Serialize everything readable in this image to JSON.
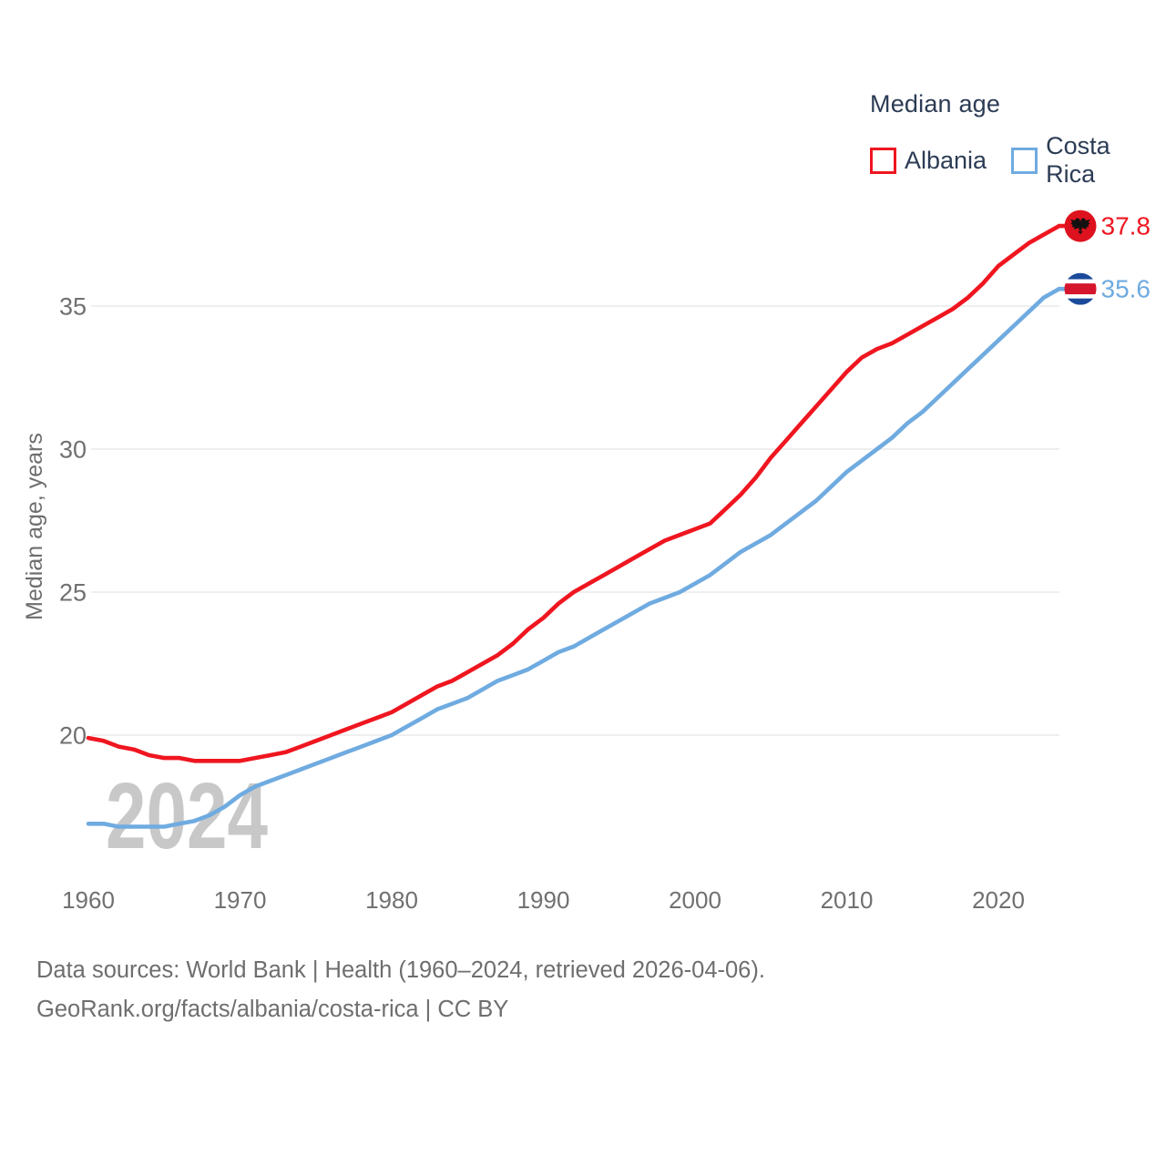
{
  "legend": {
    "title": "Median age",
    "items": [
      {
        "label": "Albania"
      },
      {
        "label": "Costa Rica"
      }
    ]
  },
  "watermark": "2024",
  "footer": {
    "line1": "Data sources: World Bank | Health (1960–2024, retrieved 2026-04-06).",
    "line2": "GeoRank.org/facts/albania/costa-rica | CC BY"
  },
  "chart_data": {
    "type": "line",
    "title": "Median age",
    "xlabel": "",
    "ylabel": "Median age, years",
    "xlim": [
      1956,
      2029
    ],
    "ylim": [
      16.5,
      38.5
    ],
    "xticks": [
      1960,
      1970,
      1980,
      1990,
      2000,
      2010,
      2020
    ],
    "yticks": [
      20,
      25,
      30,
      35
    ],
    "grid": "horizontal",
    "legend_position": "top-right",
    "x_start": 1960,
    "x_end": 2024,
    "x": [
      1960,
      1961,
      1962,
      1963,
      1964,
      1965,
      1966,
      1967,
      1968,
      1969,
      1970,
      1971,
      1972,
      1973,
      1974,
      1975,
      1976,
      1977,
      1978,
      1979,
      1980,
      1981,
      1982,
      1983,
      1984,
      1985,
      1986,
      1987,
      1988,
      1989,
      1990,
      1991,
      1992,
      1993,
      1994,
      1995,
      1996,
      1997,
      1998,
      1999,
      2000,
      2001,
      2002,
      2003,
      2004,
      2005,
      2006,
      2007,
      2008,
      2009,
      2010,
      2011,
      2012,
      2013,
      2014,
      2015,
      2016,
      2017,
      2018,
      2019,
      2020,
      2021,
      2022,
      2023,
      2024
    ],
    "series": [
      {
        "name": "Albania",
        "color": "#ef1620",
        "flag_icon": "albania-flag-icon",
        "end_label": "37.8",
        "last_value": 37.8,
        "values": [
          19.9,
          19.8,
          19.6,
          19.5,
          19.3,
          19.2,
          19.2,
          19.1,
          19.1,
          19.1,
          19.1,
          19.2,
          19.3,
          19.4,
          19.6,
          19.8,
          20.0,
          20.2,
          20.4,
          20.6,
          20.8,
          21.1,
          21.4,
          21.7,
          21.9,
          22.2,
          22.5,
          22.8,
          23.2,
          23.7,
          24.1,
          24.6,
          25.0,
          25.3,
          25.6,
          25.9,
          26.2,
          26.5,
          26.8,
          27.0,
          27.2,
          27.4,
          27.9,
          28.4,
          29.0,
          29.7,
          30.3,
          30.9,
          31.5,
          32.1,
          32.7,
          33.2,
          33.5,
          33.7,
          34.0,
          34.3,
          34.6,
          34.9,
          35.3,
          35.8,
          36.4,
          36.8,
          37.2,
          37.5,
          37.8
        ]
      },
      {
        "name": "Costa Rica",
        "color": "#6fabe0",
        "flag_icon": "costa-rica-flag-icon",
        "end_label": "35.6",
        "last_value": 35.6,
        "values": [
          16.9,
          16.9,
          16.8,
          16.8,
          16.8,
          16.8,
          16.9,
          17.0,
          17.2,
          17.5,
          17.9,
          18.2,
          18.4,
          18.6,
          18.8,
          19.0,
          19.2,
          19.4,
          19.6,
          19.8,
          20.0,
          20.3,
          20.6,
          20.9,
          21.1,
          21.3,
          21.6,
          21.9,
          22.1,
          22.3,
          22.6,
          22.9,
          23.1,
          23.4,
          23.7,
          24.0,
          24.3,
          24.6,
          24.8,
          25.0,
          25.3,
          25.6,
          26.0,
          26.4,
          26.7,
          27.0,
          27.4,
          27.8,
          28.2,
          28.7,
          29.2,
          29.6,
          30.0,
          30.4,
          30.9,
          31.3,
          31.8,
          32.3,
          32.8,
          33.3,
          33.8,
          34.3,
          34.8,
          35.3,
          35.6
        ]
      }
    ],
    "flag_colors": {
      "albania_red": "#dd121e",
      "albania_eagle": "#111111",
      "costa_rica_blue": "#1b4a9b",
      "costa_rica_red": "#d6162c",
      "costa_rica_white": "#ffffff"
    },
    "style": {
      "grid_color": "#eaeaea",
      "tick_color": "#707070",
      "axis_title_color": "#6e6e6e",
      "watermark_color": "#c8c8c8"
    }
  }
}
